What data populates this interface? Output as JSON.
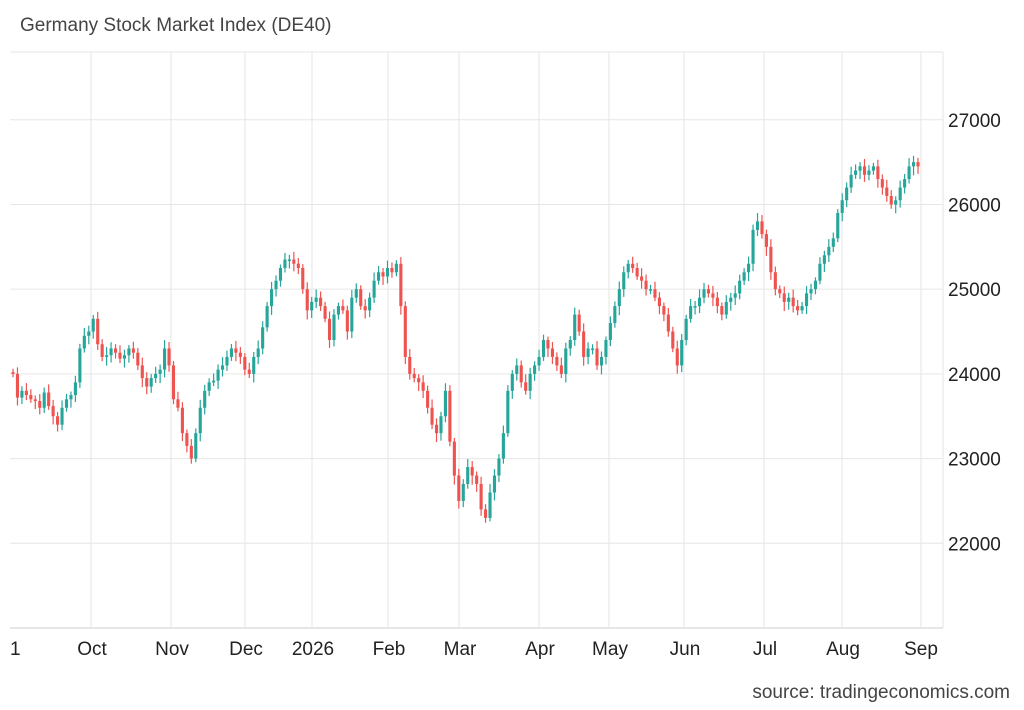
{
  "chart_data": {
    "type": "candlestick",
    "title": "Germany Stock Market Index (DE40)",
    "source": "source: tradingeconomics.com",
    "ylim": [
      21000,
      27800
    ],
    "y_ticks": [
      22000,
      23000,
      24000,
      25000,
      26000,
      27000
    ],
    "x_tick_labels": [
      "1",
      "Oct",
      "Nov",
      "Dec",
      "2026",
      "Feb",
      "Mar",
      "Apr",
      "May",
      "Jun",
      "Jul",
      "Aug",
      "Sep"
    ],
    "grid": true,
    "colors": {
      "up": "#26a69a",
      "down": "#ef5350",
      "grid": "#e6e6e6"
    },
    "close_series": [
      24000,
      23720,
      23800,
      23750,
      23700,
      23680,
      23600,
      23780,
      23620,
      23500,
      23400,
      23600,
      23700,
      23750,
      23900,
      24300,
      24450,
      24500,
      24650,
      24350,
      24200,
      24220,
      24300,
      24250,
      24180,
      24220,
      24300,
      24250,
      24100,
      23950,
      23850,
      23950,
      24000,
      24050,
      24300,
      24100,
      23700,
      23600,
      23300,
      23150,
      23000,
      23300,
      23600,
      23800,
      23900,
      23920,
      24050,
      24100,
      24200,
      24300,
      24250,
      24200,
      24050,
      24000,
      24200,
      24300,
      24550,
      24800,
      25000,
      25100,
      25250,
      25350,
      25350,
      25300,
      25250,
      25000,
      24750,
      24850,
      24900,
      24800,
      24650,
      24400,
      24700,
      24800,
      24750,
      24500,
      24900,
      25000,
      24800,
      24750,
      24900,
      25100,
      25200,
      25150,
      25250,
      25200,
      25300,
      24800,
      24200,
      24000,
      23950,
      23900,
      23800,
      23600,
      23400,
      23300,
      23500,
      23800,
      23200,
      22800,
      22500,
      22700,
      22900,
      22800,
      22700,
      22400,
      22300,
      22600,
      22800,
      23000,
      23300,
      23800,
      24000,
      24100,
      23900,
      23800,
      24000,
      24100,
      24200,
      24400,
      24300,
      24200,
      24100,
      24000,
      24300,
      24400,
      24700,
      24500,
      24200,
      24300,
      24300,
      24100,
      24200,
      24400,
      24600,
      24800,
      25000,
      25200,
      25300,
      25250,
      25150,
      25100,
      25000,
      25000,
      24900,
      24800,
      24700,
      24500,
      24300,
      24100,
      24400,
      24650,
      24800,
      24800,
      24900,
      25000,
      24950,
      24900,
      24800,
      24700,
      24850,
      24900,
      24950,
      25100,
      25200,
      25300,
      25700,
      25800,
      25650,
      25500,
      25200,
      25000,
      24950,
      24850,
      24900,
      24800,
      24750,
      24800,
      24950,
      25000,
      25100,
      25300,
      25400,
      25500,
      25600,
      25900,
      26050,
      26200,
      26350,
      26400,
      26450,
      26350,
      26400,
      26450,
      26300,
      26200,
      26100,
      26000,
      26050,
      26200,
      26300,
      26450,
      26500,
      26450
    ]
  }
}
